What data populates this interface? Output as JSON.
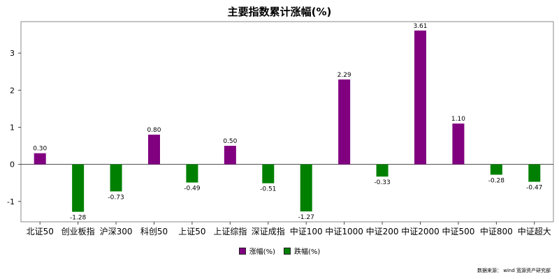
{
  "title": "主要指数累计涨幅(%)",
  "source": "数据来源： wind 宽源资产研究部",
  "legend": {
    "up_label": "涨幅(%)",
    "down_label": "跌幅(%)"
  },
  "colors": {
    "up": "#800080",
    "down": "#008000",
    "axis": "#444444",
    "frame": "#888888"
  },
  "chart_data": {
    "type": "bar",
    "title": "主要指数累计涨幅(%)",
    "categories": [
      "北证50",
      "创业板指",
      "沪深300",
      "科创50",
      "上证50",
      "上证综指",
      "深证成指",
      "中证100",
      "中证1000",
      "中证200",
      "中证2000",
      "中证500",
      "中证800",
      "中证超大"
    ],
    "series": [
      {
        "name": "涨幅(%)",
        "values": [
          0.3,
          null,
          null,
          0.8,
          null,
          0.5,
          null,
          null,
          2.29,
          null,
          3.61,
          1.1,
          null,
          null
        ]
      },
      {
        "name": "跌幅(%)",
        "values": [
          null,
          -1.28,
          -0.73,
          null,
          -0.49,
          null,
          -0.51,
          -1.27,
          null,
          -0.33,
          null,
          null,
          -0.28,
          -0.47
        ]
      }
    ],
    "data_labels": [
      "0.30",
      "-1.28",
      "-0.73",
      "0.80",
      "-0.49",
      "0.50",
      "-0.51",
      "-1.27",
      "2.29",
      "-0.33",
      "3.61",
      "1.10",
      "-0.28",
      "-0.47"
    ],
    "yticks": [
      "-1",
      "0",
      "1",
      "2",
      "3"
    ],
    "ylim": [
      -1.55,
      3.85
    ],
    "xlabel": "",
    "ylabel": "",
    "grid": false,
    "legend_position": "bottom"
  }
}
